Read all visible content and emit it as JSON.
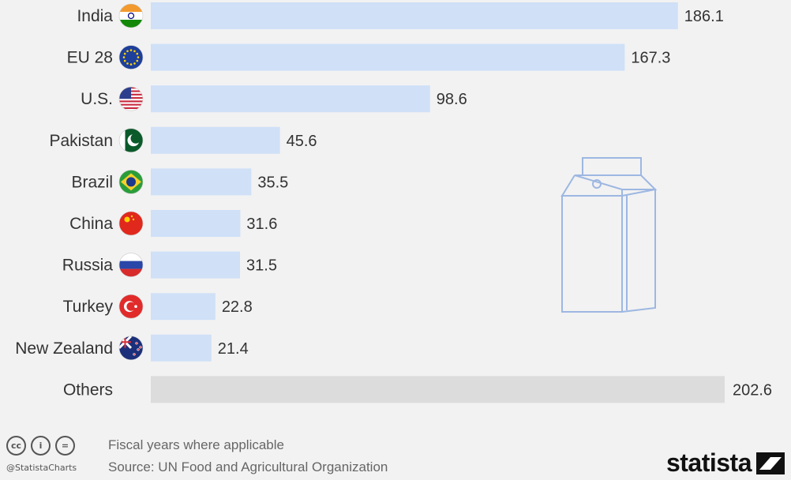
{
  "chart_data": {
    "type": "bar",
    "orientation": "horizontal",
    "categories": [
      "India",
      "EU 28",
      "U.S.",
      "Pakistan",
      "Brazil",
      "China",
      "Russia",
      "Turkey",
      "New Zealand",
      "Others"
    ],
    "values": [
      186.1,
      167.3,
      98.6,
      45.6,
      35.5,
      31.6,
      31.5,
      22.8,
      21.4,
      202.6
    ],
    "value_labels": [
      "186.1",
      "167.3",
      "98.6",
      "45.6",
      "35.5",
      "31.6",
      "31.5",
      "22.8",
      "21.4",
      "202.6"
    ],
    "xlim": [
      0,
      202.6
    ],
    "grid": false,
    "colors": {
      "bar": "#cfe0f7",
      "others_bar": "#dcdcdc",
      "background": "#f2f2f2",
      "illustration_stroke": "#9db7e2"
    },
    "flags": [
      "india-flag-icon",
      "eu-flag-icon",
      "us-flag-icon",
      "pakistan-flag-icon",
      "brazil-flag-icon",
      "china-flag-icon",
      "russia-flag-icon",
      "turkey-flag-icon",
      "new-zealand-flag-icon",
      null
    ]
  },
  "footer": {
    "note": "Fiscal years where applicable",
    "source": "Source: UN Food and Agricultural Organization",
    "handle": "@StatistaCharts",
    "brand": "statista",
    "cc_icons": [
      "cc",
      "i",
      "="
    ]
  }
}
